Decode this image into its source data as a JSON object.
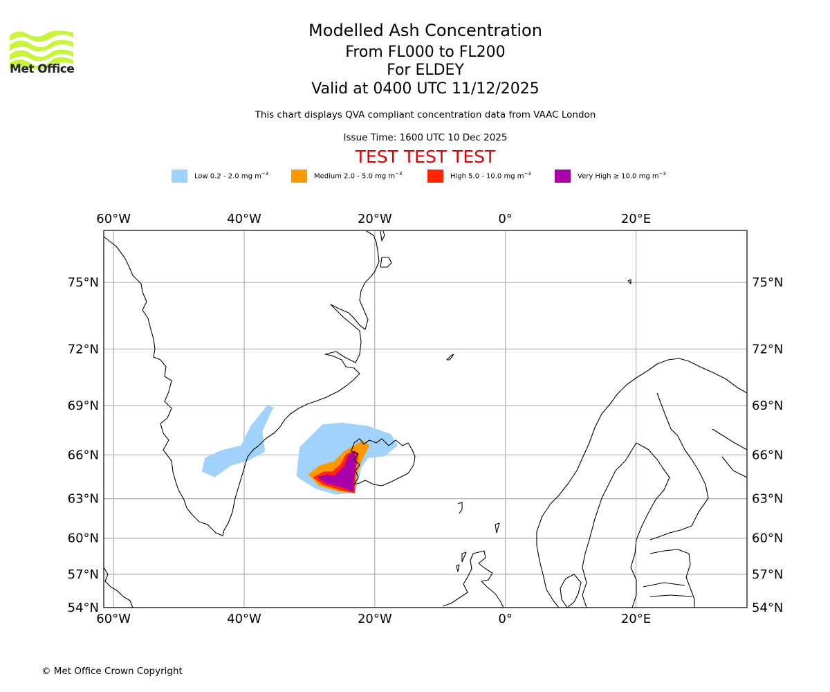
{
  "logo": {
    "icon": "met-office-waves-icon",
    "text": "Met Office",
    "color": "#c8f53c"
  },
  "header": {
    "title": "Modelled Ash Concentration",
    "levels": "From FL000 to FL200",
    "volcano": "For ELDEY",
    "valid": "Valid at 0400 UTC 11/12/2025",
    "description": "This chart displays QVA compliant concentration data from VAAC London",
    "issue_time": "Issue Time: 1600 UTC 10 Dec 2025",
    "test_banner": "TEST TEST TEST",
    "test_color": "#e00000"
  },
  "legend": [
    {
      "label": "Low 0.2 - 2.0 mg m",
      "sup": "−3",
      "color": "#a0d2fb"
    },
    {
      "label": "Medium 2.0 - 5.0 mg m",
      "sup": "−3",
      "color": "#ff9900"
    },
    {
      "label": "High 5.0 - 10.0 mg m",
      "sup": "−3",
      "color": "#ff2600"
    },
    {
      "label": "Very High ≥ 10.0 mg m",
      "sup": "−3",
      "color": "#aa00aa"
    }
  ],
  "chart_data": {
    "type": "heatmap",
    "title": "Modelled Ash Concentration",
    "projection": "Mercator",
    "extent": {
      "lon": [
        -61.5,
        37
      ],
      "lat": [
        54,
        77
      ]
    },
    "grid": true,
    "x_ticks": [
      "60°W",
      "40°W",
      "20°W",
      "0°",
      "20°E"
    ],
    "x_tick_values": [
      -60,
      -40,
      -20,
      0,
      20
    ],
    "y_ticks": [
      "75°N",
      "72°N",
      "69°N",
      "66°N",
      "63°N",
      "60°N",
      "57°N",
      "54°N"
    ],
    "y_tick_values": [
      75,
      72,
      69,
      66,
      63,
      60,
      57,
      54
    ],
    "source_volcano": {
      "name": "ELDEY",
      "lon": -23.3,
      "lat": 63.6
    },
    "ash_regions": [
      {
        "level": "Low",
        "color": "#a0d2fb",
        "polygons": [
          [
            [
              -32,
              64.6
            ],
            [
              -31.5,
              66.5
            ],
            [
              -28,
              67.9
            ],
            [
              -25,
              68.0
            ],
            [
              -21,
              67.8
            ],
            [
              -17.5,
              67.3
            ],
            [
              -16.5,
              66.6
            ],
            [
              -18.5,
              65.9
            ],
            [
              -21,
              65.8
            ],
            [
              -22,
              65.2
            ],
            [
              -23,
              63.4
            ],
            [
              -26,
              63.3
            ],
            [
              -29,
              63.7
            ],
            [
              -31.5,
              64.4
            ]
          ],
          [
            [
              -46.5,
              64.9
            ],
            [
              -46.0,
              65.8
            ],
            [
              -43.5,
              66.3
            ],
            [
              -40.5,
              66.6
            ],
            [
              -39.0,
              67.8
            ],
            [
              -36.5,
              69.0
            ],
            [
              -35.5,
              68.9
            ],
            [
              -37.2,
              67.5
            ],
            [
              -36.8,
              66.2
            ],
            [
              -39.5,
              65.6
            ],
            [
              -42,
              65.3
            ],
            [
              -44.5,
              64.5
            ]
          ]
        ]
      },
      {
        "level": "Medium",
        "color": "#ff9900",
        "polygons": [
          [
            [
              -30.2,
              64.7
            ],
            [
              -28.5,
              65.3
            ],
            [
              -26.2,
              65.6
            ],
            [
              -24.8,
              66.2
            ],
            [
              -23.2,
              66.6
            ],
            [
              -21.8,
              66.9
            ],
            [
              -20.8,
              66.6
            ],
            [
              -22.0,
              65.6
            ],
            [
              -22.8,
              64.6
            ],
            [
              -23.0,
              63.4
            ],
            [
              -25.5,
              63.5
            ],
            [
              -28.5,
              63.9
            ]
          ]
        ]
      },
      {
        "level": "High",
        "color": "#ff2600",
        "polygons": [
          [
            [
              -29.5,
              64.5
            ],
            [
              -27.8,
              64.9
            ],
            [
              -26.5,
              64.9
            ],
            [
              -25.2,
              65.4
            ],
            [
              -24.5,
              66.0
            ],
            [
              -23.2,
              66.3
            ],
            [
              -22.5,
              66.1
            ],
            [
              -22.9,
              65.0
            ],
            [
              -23.1,
              63.4
            ],
            [
              -25.2,
              63.6
            ],
            [
              -28.0,
              64.0
            ]
          ]
        ]
      },
      {
        "level": "Very High",
        "color": "#aa00aa",
        "polygons": [
          [
            [
              -28.8,
              64.5
            ],
            [
              -27.2,
              64.7
            ],
            [
              -26.2,
              64.6
            ],
            [
              -24.6,
              65.3
            ],
            [
              -24.0,
              66.0
            ],
            [
              -23.1,
              66.2
            ],
            [
              -22.8,
              65.5
            ],
            [
              -23.2,
              64.3
            ],
            [
              -23.3,
              63.5
            ],
            [
              -25.0,
              63.8
            ],
            [
              -27.5,
              64.1
            ]
          ]
        ]
      }
    ]
  },
  "footer": {
    "copyright": "© Met Office Crown Copyright"
  }
}
